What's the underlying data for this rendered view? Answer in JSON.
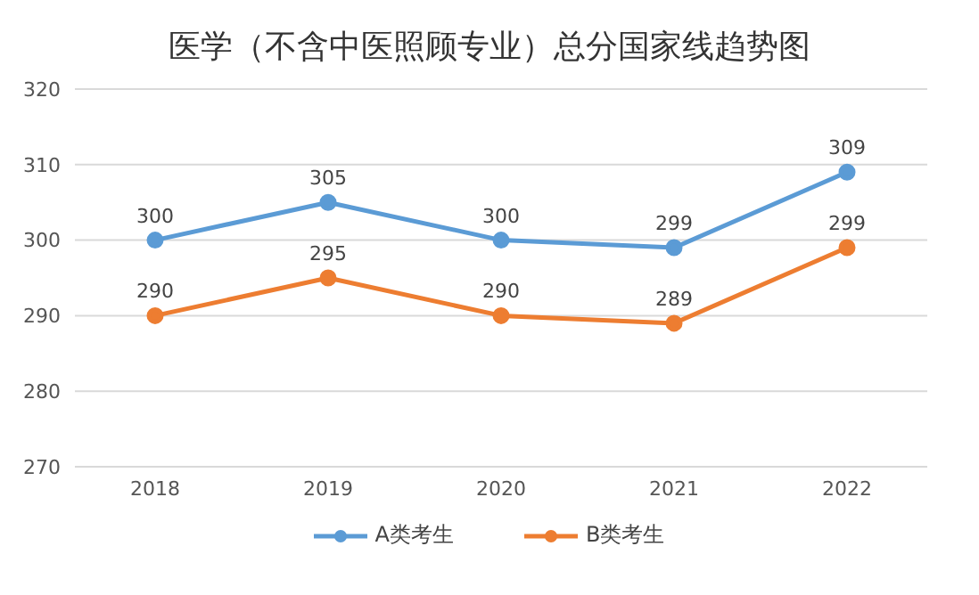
{
  "chart_data": {
    "type": "line",
    "title": "医学（不含中医照顾专业）总分国家线趋势图",
    "categories": [
      "2018",
      "2019",
      "2020",
      "2021",
      "2022"
    ],
    "series": [
      {
        "name": "A类考生",
        "color": "#5b9bd5",
        "values": [
          300,
          305,
          300,
          299,
          309
        ]
      },
      {
        "name": "B类考生",
        "color": "#ed7d31",
        "values": [
          290,
          295,
          290,
          289,
          299
        ]
      }
    ],
    "ylim": [
      270,
      320
    ],
    "yticks": [
      270,
      280,
      290,
      300,
      310,
      320
    ],
    "grid": "y",
    "legend": "bottom",
    "marker": "circle",
    "data_labels": true
  }
}
